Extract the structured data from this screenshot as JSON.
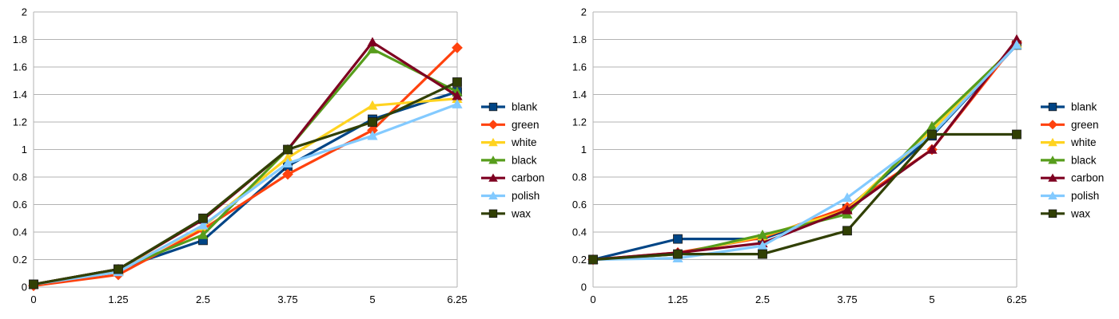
{
  "chart_data": [
    {
      "type": "line",
      "title": "",
      "xlabel": "",
      "ylabel": "",
      "x": [
        0,
        1.25,
        2.5,
        3.75,
        5,
        6.25
      ],
      "x_tick_labels": [
        "0",
        "1.25",
        "2.5",
        "3.75",
        "5",
        "6.25"
      ],
      "ylim": [
        0,
        2
      ],
      "y_tick_labels": [
        "0",
        "0.2",
        "0.4",
        "0.6",
        "0.8",
        "1",
        "1.2",
        "1.4",
        "1.6",
        "1.8",
        "2"
      ],
      "grid": true,
      "legend_position": "right",
      "series": [
        {
          "name": "blank",
          "color": "#004586",
          "marker": "square",
          "values": [
            0.02,
            0.13,
            0.34,
            0.88,
            1.22,
            1.42
          ]
        },
        {
          "name": "green",
          "color": "#ff420e",
          "marker": "diamond",
          "values": [
            0.01,
            0.09,
            0.42,
            0.82,
            1.14,
            1.74
          ]
        },
        {
          "name": "white",
          "color": "#ffd320",
          "marker": "triangle",
          "values": [
            0.02,
            0.12,
            0.44,
            0.94,
            1.32,
            1.37
          ]
        },
        {
          "name": "black",
          "color": "#579d1c",
          "marker": "triangle",
          "values": [
            0.02,
            0.13,
            0.38,
            1.0,
            1.73,
            1.42
          ]
        },
        {
          "name": "carbon",
          "color": "#7e0021",
          "marker": "triangle",
          "values": [
            0.02,
            0.13,
            0.49,
            1.0,
            1.78,
            1.39
          ]
        },
        {
          "name": "polish",
          "color": "#83caff",
          "marker": "triangle",
          "values": [
            0.02,
            0.11,
            0.45,
            0.9,
            1.1,
            1.33
          ]
        },
        {
          "name": "wax",
          "color": "#314004",
          "marker": "square",
          "values": [
            0.02,
            0.13,
            0.5,
            1.0,
            1.2,
            1.49
          ]
        }
      ]
    },
    {
      "type": "line",
      "title": "",
      "xlabel": "",
      "ylabel": "",
      "x": [
        0,
        1.25,
        2.5,
        3.75,
        5,
        6.25
      ],
      "x_tick_labels": [
        "0",
        "1.25",
        "2.5",
        "3.75",
        "5",
        "6.25"
      ],
      "ylim": [
        0,
        2
      ],
      "y_tick_labels": [
        "0",
        "0.2",
        "0.4",
        "0.6",
        "0.8",
        "1",
        "1.2",
        "1.4",
        "1.6",
        "1.8",
        "2"
      ],
      "grid": true,
      "legend_position": "right",
      "series": [
        {
          "name": "blank",
          "color": "#004586",
          "marker": "square",
          "values": [
            0.2,
            0.35,
            0.35,
            0.57,
            1.1,
            1.76
          ]
        },
        {
          "name": "green",
          "color": "#ff420e",
          "marker": "diamond",
          "values": [
            0.2,
            0.25,
            0.36,
            0.58,
            1.0,
            1.78
          ]
        },
        {
          "name": "white",
          "color": "#ffd320",
          "marker": "triangle",
          "values": [
            0.2,
            0.24,
            0.37,
            0.56,
            1.14,
            1.77
          ]
        },
        {
          "name": "black",
          "color": "#579d1c",
          "marker": "triangle",
          "values": [
            0.2,
            0.24,
            0.38,
            0.53,
            1.17,
            1.76
          ]
        },
        {
          "name": "carbon",
          "color": "#7e0021",
          "marker": "triangle",
          "values": [
            0.2,
            0.25,
            0.32,
            0.56,
            1.0,
            1.8
          ]
        },
        {
          "name": "polish",
          "color": "#83caff",
          "marker": "triangle",
          "values": [
            0.2,
            0.21,
            0.3,
            0.65,
            1.11,
            1.76
          ]
        },
        {
          "name": "wax",
          "color": "#314004",
          "marker": "square",
          "values": [
            0.2,
            0.24,
            0.24,
            0.41,
            1.11,
            1.11
          ]
        }
      ]
    }
  ]
}
